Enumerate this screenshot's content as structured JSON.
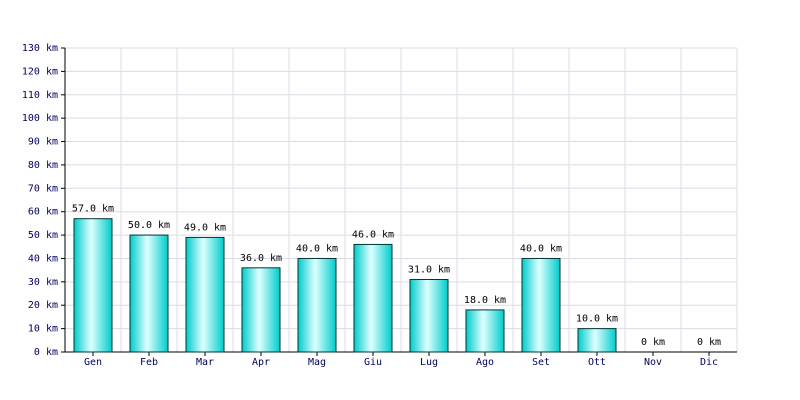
{
  "chart_data": {
    "type": "bar",
    "categories": [
      "Gen",
      "Feb",
      "Mar",
      "Apr",
      "Mag",
      "Giu",
      "Lug",
      "Ago",
      "Set",
      "Ott",
      "Nov",
      "Dic"
    ],
    "values": [
      57,
      50,
      49,
      36,
      40,
      46,
      31,
      18,
      40,
      10,
      0,
      0
    ],
    "value_labels": [
      "57.0 km",
      "50.0 km",
      "49.0 km",
      "36.0 km",
      "40.0 km",
      "46.0 km",
      "31.0 km",
      "18.0 km",
      "40.0 km",
      "10.0 km",
      "0 km",
      "0 km"
    ],
    "color": "#00cccc",
    "ylim": [
      0,
      130
    ],
    "yticks": [
      {
        "value": 0,
        "label": "0 km"
      },
      {
        "value": 10,
        "label": "10 km"
      },
      {
        "value": 20,
        "label": "20 km"
      },
      {
        "value": 30,
        "label": "30 km"
      },
      {
        "value": 40,
        "label": "40 km"
      },
      {
        "value": 50,
        "label": "50 km"
      },
      {
        "value": 60,
        "label": "60 km"
      },
      {
        "value": 70,
        "label": "70 km"
      },
      {
        "value": 80,
        "label": "80 km"
      },
      {
        "value": 90,
        "label": "90 km"
      },
      {
        "value": 100,
        "label": "100 km"
      },
      {
        "value": 110,
        "label": "110 km"
      },
      {
        "value": 120,
        "label": "120 km"
      },
      {
        "value": 130,
        "label": "130 km"
      }
    ],
    "grid": true
  }
}
